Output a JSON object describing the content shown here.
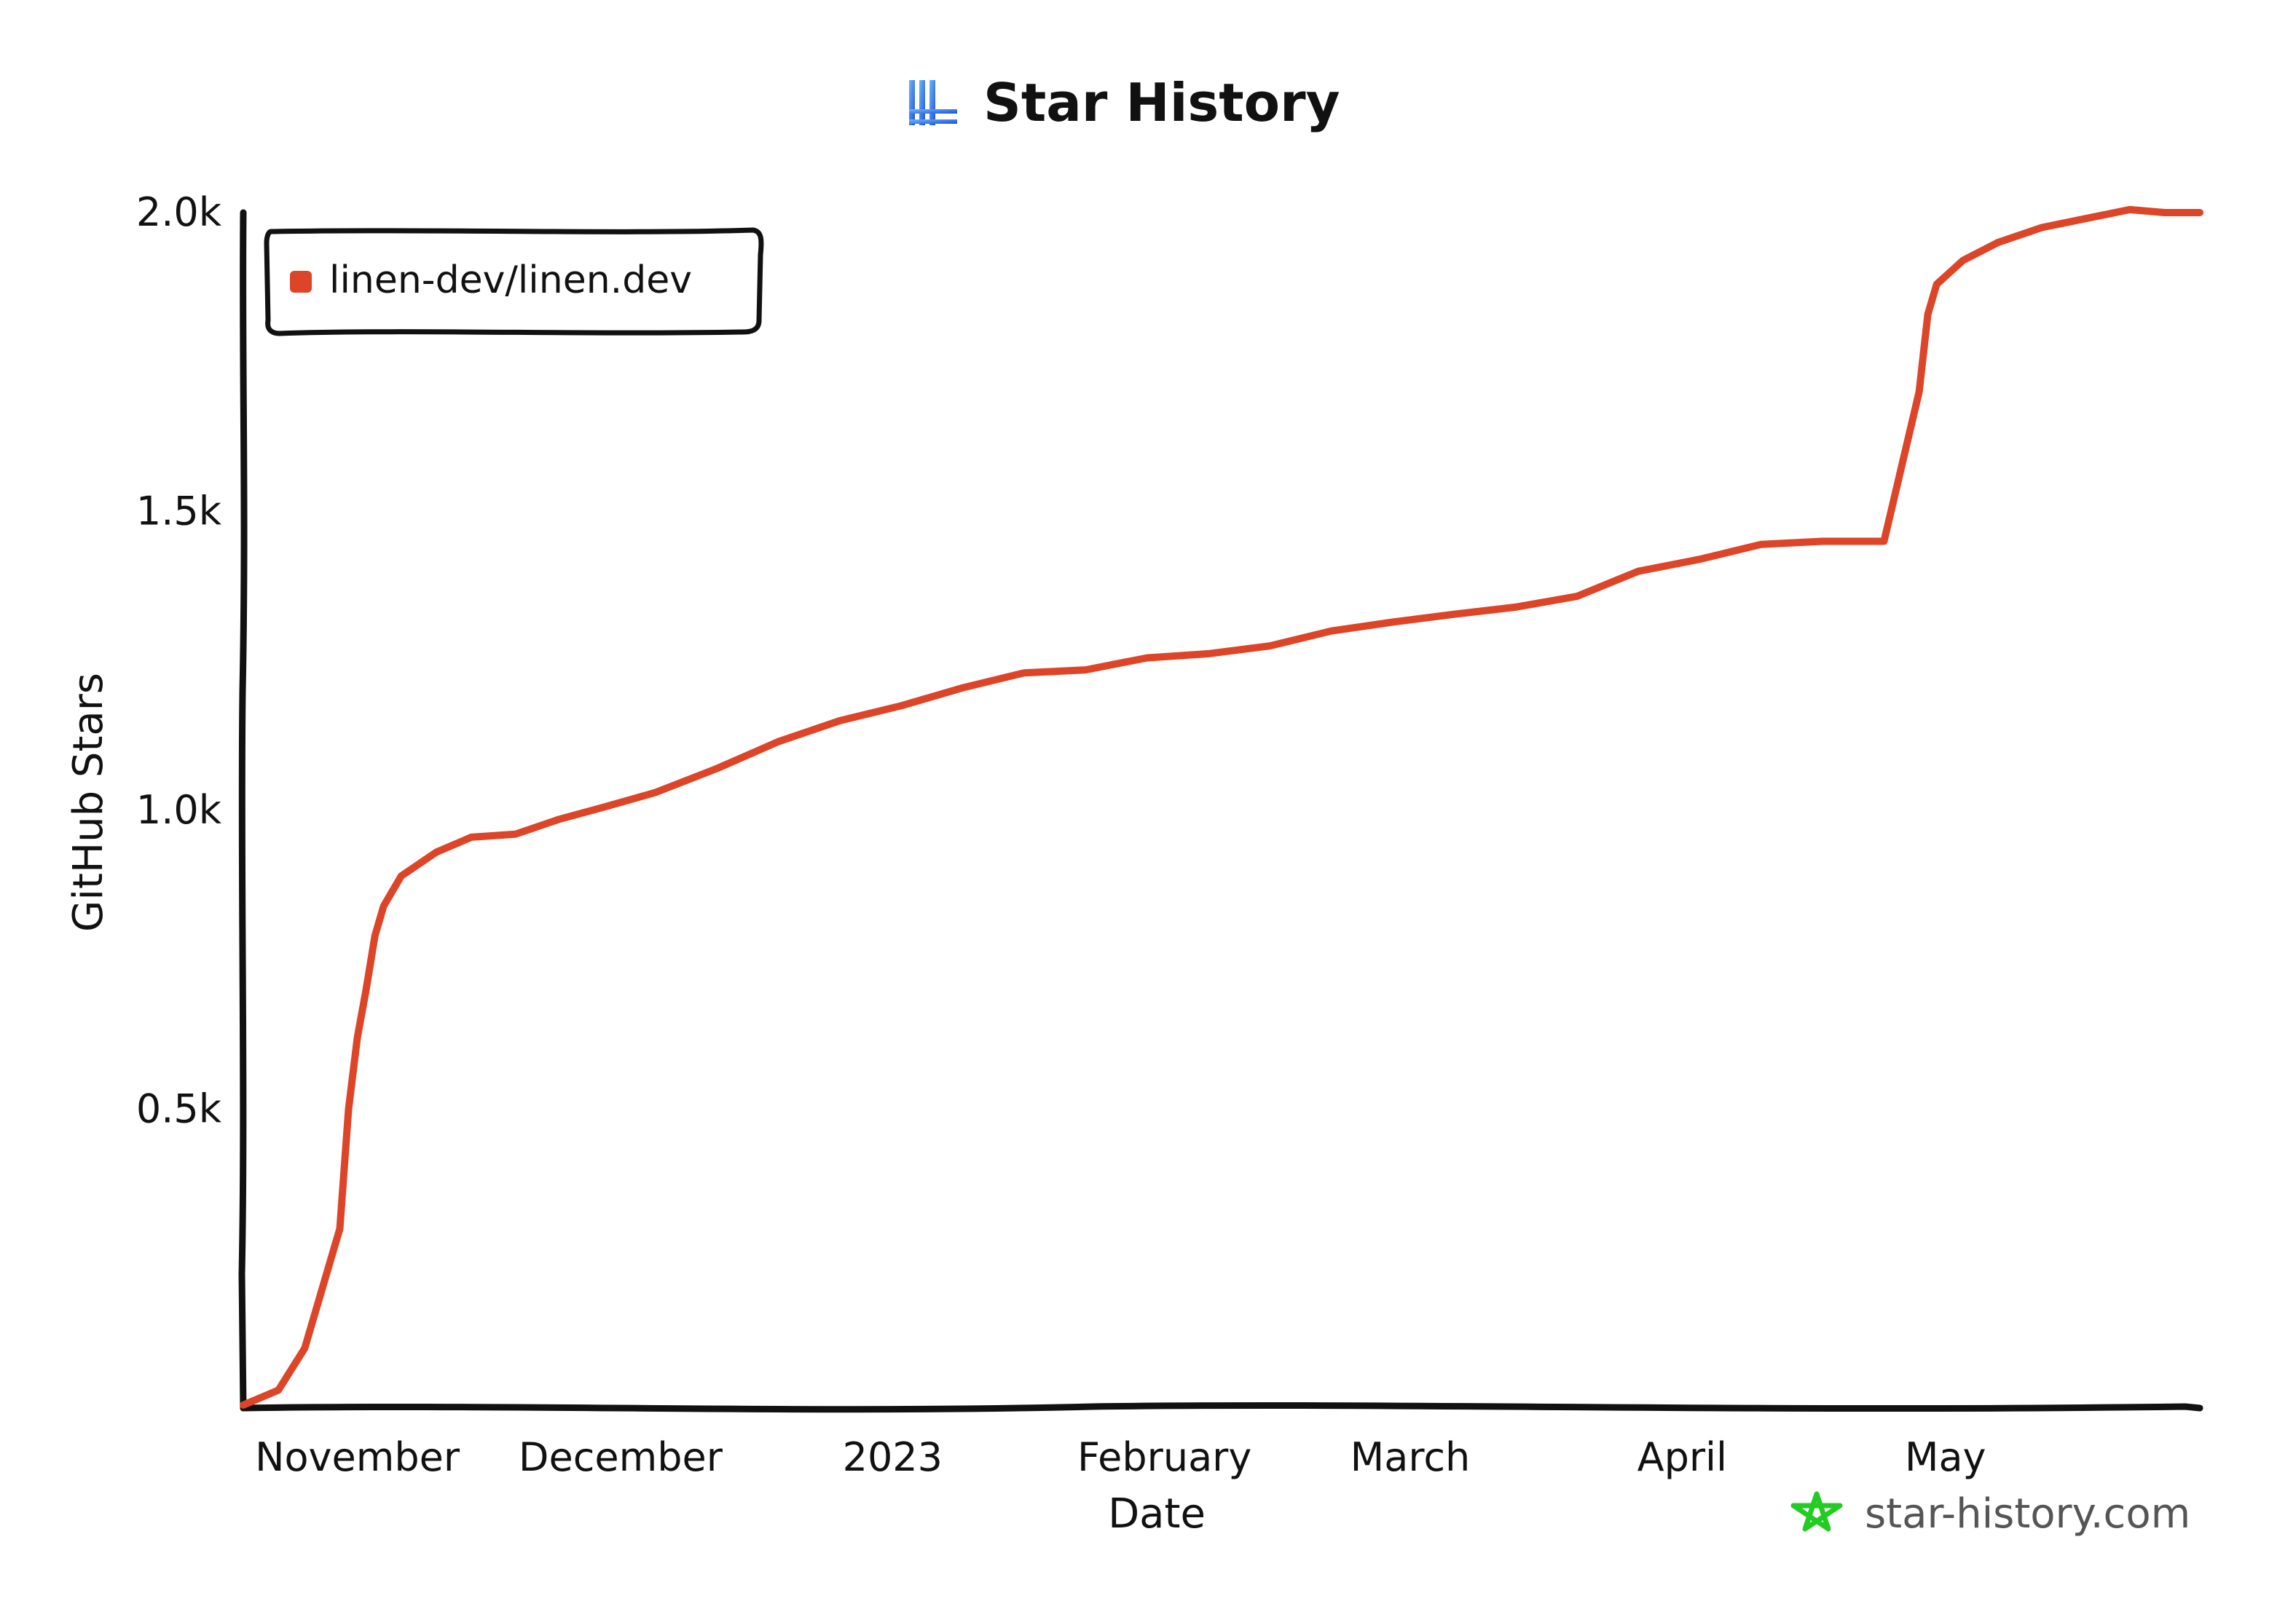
{
  "chart_data": {
    "type": "line",
    "title": "Star History",
    "xlabel": "Date",
    "ylabel": "GitHub Stars",
    "x_tick_labels": [
      "November",
      "December",
      "2023",
      "February",
      "March",
      "April",
      "May"
    ],
    "x_tick_dates": [
      "2022-11-01",
      "2022-12-01",
      "2023-01-01",
      "2023-02-01",
      "2023-03-01",
      "2023-04-01",
      "2023-05-01"
    ],
    "y_tick_labels": [
      "0.5k",
      "1.0k",
      "1.5k",
      "2.0k"
    ],
    "y_tick_values": [
      500,
      1000,
      1500,
      2000
    ],
    "xlim": [
      "2022-10-19",
      "2023-05-30"
    ],
    "ylim": [
      0,
      2000
    ],
    "legend": "top-left",
    "series": [
      {
        "name": "linen-dev/linen.dev",
        "color": "#dd4528",
        "x": [
          "2022-10-19",
          "2022-10-23",
          "2022-10-26",
          "2022-10-30",
          "2022-10-31",
          "2022-11-01",
          "2022-11-02",
          "2022-11-03",
          "2022-11-04",
          "2022-11-06",
          "2022-11-08",
          "2022-11-10",
          "2022-11-14",
          "2022-11-19",
          "2022-11-24",
          "2022-11-29",
          "2022-12-05",
          "2022-12-12",
          "2022-12-19",
          "2022-12-26",
          "2023-01-02",
          "2023-01-09",
          "2023-01-16",
          "2023-01-23",
          "2023-01-30",
          "2023-02-06",
          "2023-02-13",
          "2023-02-20",
          "2023-02-27",
          "2023-03-06",
          "2023-03-13",
          "2023-03-20",
          "2023-03-27",
          "2023-04-03",
          "2023-04-10",
          "2023-04-17",
          "2023-04-24",
          "2023-04-28",
          "2023-04-29",
          "2023-04-30",
          "2023-05-03",
          "2023-05-07",
          "2023-05-12",
          "2023-05-17",
          "2023-05-22",
          "2023-05-26",
          "2023-05-30"
        ],
        "values": [
          5,
          30,
          100,
          300,
          500,
          620,
          700,
          790,
          840,
          890,
          910,
          930,
          955,
          960,
          985,
          1005,
          1030,
          1070,
          1115,
          1150,
          1175,
          1205,
          1230,
          1235,
          1255,
          1262,
          1275,
          1300,
          1315,
          1328,
          1340,
          1358,
          1400,
          1420,
          1445,
          1450,
          1450,
          1700,
          1830,
          1880,
          1920,
          1950,
          1975,
          1990,
          2005,
          2000,
          2000
        ]
      }
    ],
    "watermark": "star-history.com"
  }
}
